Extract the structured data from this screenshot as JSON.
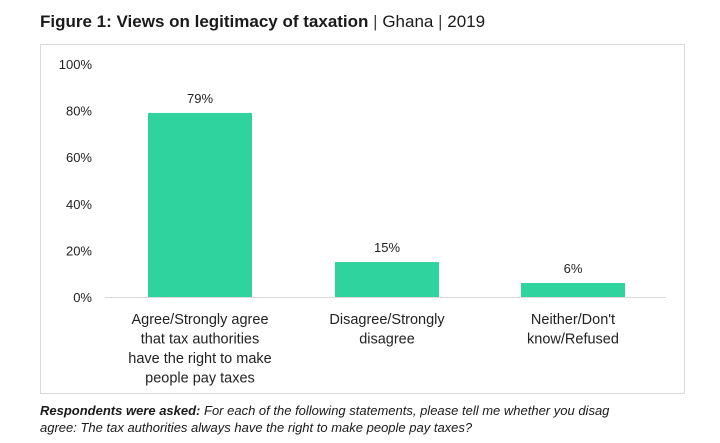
{
  "header": {
    "title_bold": "Figure 1: Views on legitimacy of taxation",
    "separator": "|",
    "country": "Ghana",
    "year": "2019"
  },
  "footnote": {
    "lead": "Respondents were asked:",
    "line1": "For each of the following statements, please tell me whether you disag",
    "line2": "agree: The tax authorities always have the right to make people pay taxes?"
  },
  "chart_data": {
    "type": "bar",
    "categories": [
      [
        "Agree/Strongly agree",
        "that tax authorities",
        "have the right to make",
        "people pay taxes"
      ],
      [
        "Disagree/Strongly",
        "disagree"
      ],
      [
        "Neither/Don't",
        "know/Refused"
      ]
    ],
    "values": [
      79,
      15,
      6
    ],
    "data_labels": [
      "79%",
      "15%",
      "6%"
    ],
    "yticks": [
      0,
      20,
      40,
      60,
      80,
      100
    ],
    "ytick_labels": [
      "0%",
      "20%",
      "40%",
      "60%",
      "80%",
      "100%"
    ],
    "ylim": [
      0,
      100
    ],
    "grid": false,
    "bar_color": "#2ed39e",
    "axis_color": "#d9d9d9"
  }
}
